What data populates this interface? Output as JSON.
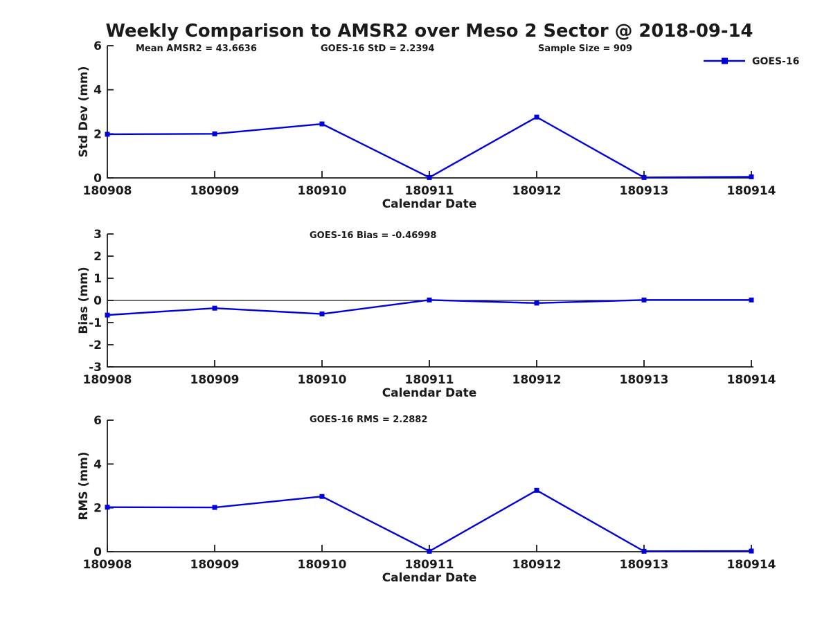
{
  "figure": {
    "title": "Weekly Comparison to AMSR2 over Meso 2 Sector @ 2018-09-14",
    "background_color": "#ffffff",
    "line_color": "#0000dd",
    "axis_color": "#1a1a1a"
  },
  "legend": {
    "label": "GOES-16",
    "position": "top-right",
    "marker": "filled-square",
    "color": "#0000dd"
  },
  "chart_data": [
    {
      "type": "line",
      "panel": "std-dev",
      "annotations": [
        "Mean AMSR2 = 43.6636",
        "GOES-16 StD = 2.2394",
        "Sample Size = 909"
      ],
      "xlabel": "Calendar Date",
      "ylabel": "Std Dev (mm)",
      "categories": [
        "180908",
        "180909",
        "180910",
        "180911",
        "180912",
        "180913",
        "180914"
      ],
      "series": [
        {
          "name": "GOES-16",
          "values": [
            1.98,
            2.0,
            2.45,
            0.02,
            2.76,
            0.02,
            0.05
          ]
        }
      ],
      "ylim": [
        0,
        6
      ],
      "yticks": [
        0,
        2,
        4,
        6
      ],
      "grid": false,
      "zero_line": false,
      "legend": true
    },
    {
      "type": "line",
      "panel": "bias",
      "annotations": [
        "GOES-16 Bias = -0.46998"
      ],
      "xlabel": "Calendar Date",
      "ylabel": "Bias (mm)",
      "categories": [
        "180908",
        "180909",
        "180910",
        "180911",
        "180912",
        "180913",
        "180914"
      ],
      "series": [
        {
          "name": "GOES-16",
          "values": [
            -0.66,
            -0.35,
            -0.61,
            0.02,
            -0.12,
            0.02,
            0.02
          ]
        }
      ],
      "ylim": [
        -3,
        3
      ],
      "yticks": [
        -3,
        -2,
        -1,
        0,
        1,
        2,
        3
      ],
      "grid": false,
      "zero_line": true,
      "legend": false
    },
    {
      "type": "line",
      "panel": "rms",
      "annotations": [
        "GOES-16 RMS = 2.2882"
      ],
      "xlabel": "Calendar Date",
      "ylabel": "RMS (mm)",
      "categories": [
        "180908",
        "180909",
        "180910",
        "180911",
        "180912",
        "180913",
        "180914"
      ],
      "series": [
        {
          "name": "GOES-16",
          "values": [
            2.03,
            2.02,
            2.52,
            0.02,
            2.8,
            0.02,
            0.03
          ]
        }
      ],
      "ylim": [
        0,
        6
      ],
      "yticks": [
        0,
        2,
        4,
        6
      ],
      "grid": false,
      "zero_line": false,
      "legend": false
    }
  ]
}
